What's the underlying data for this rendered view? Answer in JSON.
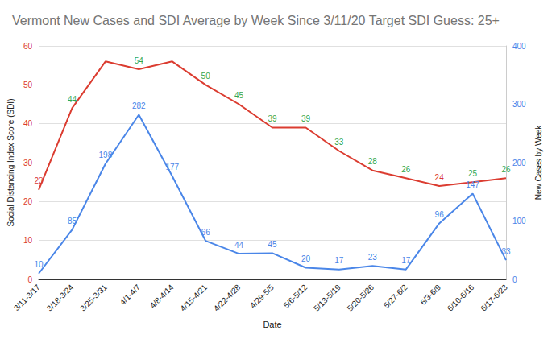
{
  "chart_data": {
    "type": "line",
    "title": "Vermont New Cases and SDI Average by Week Since 3/11/20 Target SDI Guess: 25+",
    "x_label": "Date",
    "y_label": "Social Distancing Index Score (SDI)",
    "y2_label": "New Cases by Week",
    "categories": [
      "3/11-3/17",
      "3/18-3/24",
      "3/25-3/31",
      "4/1-4/7",
      "4/8-4/14",
      "4/15-4/21",
      "4/22-4/28",
      "4/29-5/5",
      "5/6-5/12",
      "5/13-5/19",
      "5/20-5/26",
      "5/27-6/2",
      "6/3-6/9",
      "6/10-6/16",
      "6/17-6/23"
    ],
    "series": [
      {
        "color": "#db3c30",
        "colors": [
          "#db3c30",
          "#34a853",
          "#34a853",
          "#34a853",
          "#34a853",
          "#34a853",
          "#34a853",
          "#34a853",
          "#34a853",
          "#34a853",
          "#34a853",
          "#34a853",
          "#db3c30",
          "#34a853",
          "#34a853"
        ],
        "values": [
          23,
          44,
          56,
          54,
          56,
          50,
          45,
          39,
          39,
          33,
          28,
          26,
          24,
          25,
          26
        ],
        "value_labels": [
          "23",
          "44",
          null,
          "54",
          null,
          "50",
          "45",
          "39",
          "39",
          "33",
          "28",
          "26",
          "24",
          "25",
          "26"
        ]
      },
      {
        "color": "#4a86e8",
        "axis": "y2",
        "values": [
          10,
          85,
          198,
          282,
          177,
          66,
          44,
          45,
          20,
          17,
          23,
          17,
          96,
          147,
          33
        ]
      }
    ],
    "ylim": [
      0,
      60
    ],
    "yticks": [
      0,
      10,
      20,
      30,
      40,
      50,
      60
    ],
    "y2lim": [
      0,
      400
    ],
    "y2ticks": [
      0,
      100,
      200,
      300,
      400
    ],
    "grid": true,
    "data_labels": true
  }
}
